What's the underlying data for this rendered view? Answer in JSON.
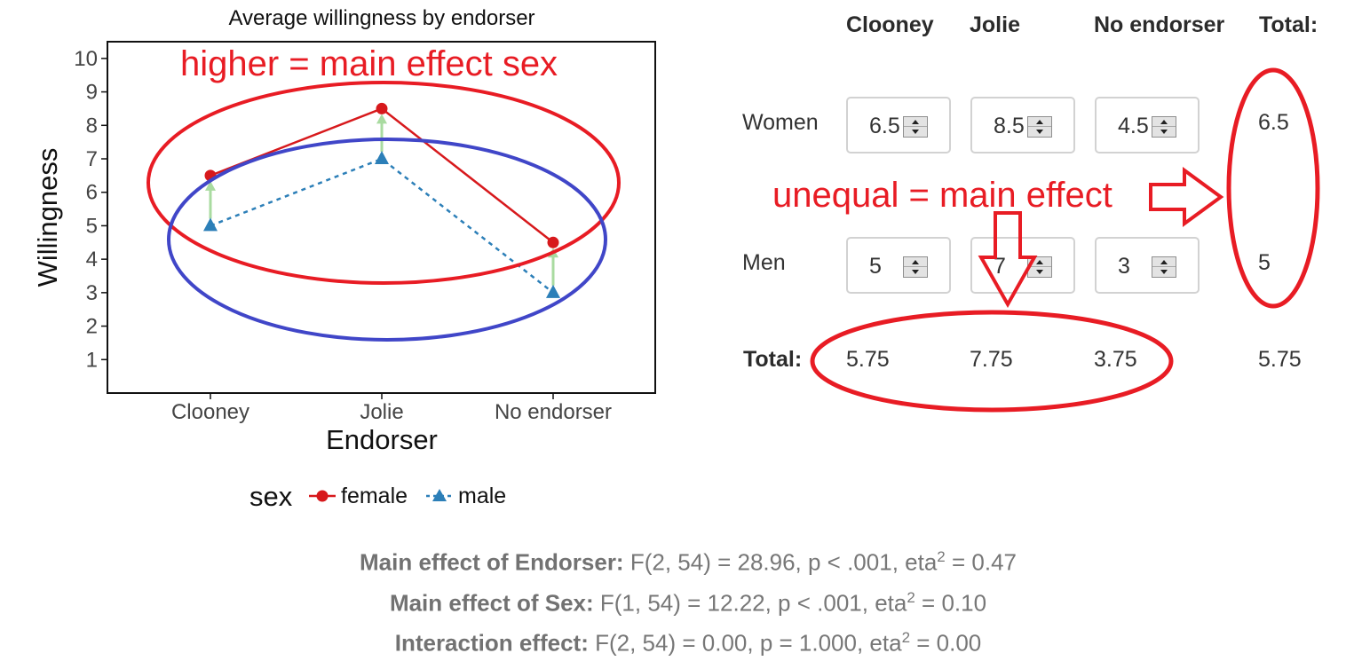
{
  "chart_data": {
    "type": "line",
    "title": "Average willingness by endorser",
    "xlabel": "Endorser",
    "ylabel": "Willingness",
    "categories": [
      "Clooney",
      "Jolie",
      "No endorser"
    ],
    "yticks": [
      1,
      2,
      3,
      4,
      5,
      6,
      7,
      8,
      9,
      10
    ],
    "ylim": [
      0,
      10.5
    ],
    "grid": false,
    "legend": {
      "title": "sex",
      "placement": "bottom"
    },
    "series": [
      {
        "name": "female",
        "values": [
          6.5,
          8.5,
          4.5
        ],
        "color": "#d7191c",
        "marker": "circle",
        "linestyle": "solid"
      },
      {
        "name": "male",
        "values": [
          5,
          7,
          3
        ],
        "color": "#2c7fb8",
        "marker": "triangle",
        "linestyle": "dashed"
      }
    ],
    "arrow_color": "#a9dba0"
  },
  "table": {
    "headers": [
      "Clooney",
      "Jolie",
      "No endorser",
      "Total:"
    ],
    "rows": [
      {
        "label": "Women",
        "values": [
          "6.5",
          "8.5",
          "4.5"
        ],
        "total": "6.5"
      },
      {
        "label": "Men",
        "values": [
          "5",
          "7",
          "3"
        ],
        "total": "5"
      }
    ],
    "total_label": "Total:",
    "column_totals": [
      "5.75",
      "7.75",
      "3.75"
    ],
    "grand_total": "5.75"
  },
  "annotations": {
    "higher": "higher = main effect sex",
    "unequal": "unequal = main effect",
    "red_color": "#e81c24",
    "blue_color": "#4046c8"
  },
  "stats": [
    {
      "label": "Main effect of Endorser:",
      "text": "F(2, 54) = 28.96, p < .001, eta",
      "sup": "2",
      "tail": " = 0.47"
    },
    {
      "label": "Main effect of Sex:",
      "text": "F(1, 54) = 12.22, p < .001, eta",
      "sup": "2",
      "tail": " = 0.10"
    },
    {
      "label": "Interaction effect:",
      "text": "F(2, 54) = 0.00, p = 1.000, eta",
      "sup": "2",
      "tail": " = 0.00"
    }
  ]
}
